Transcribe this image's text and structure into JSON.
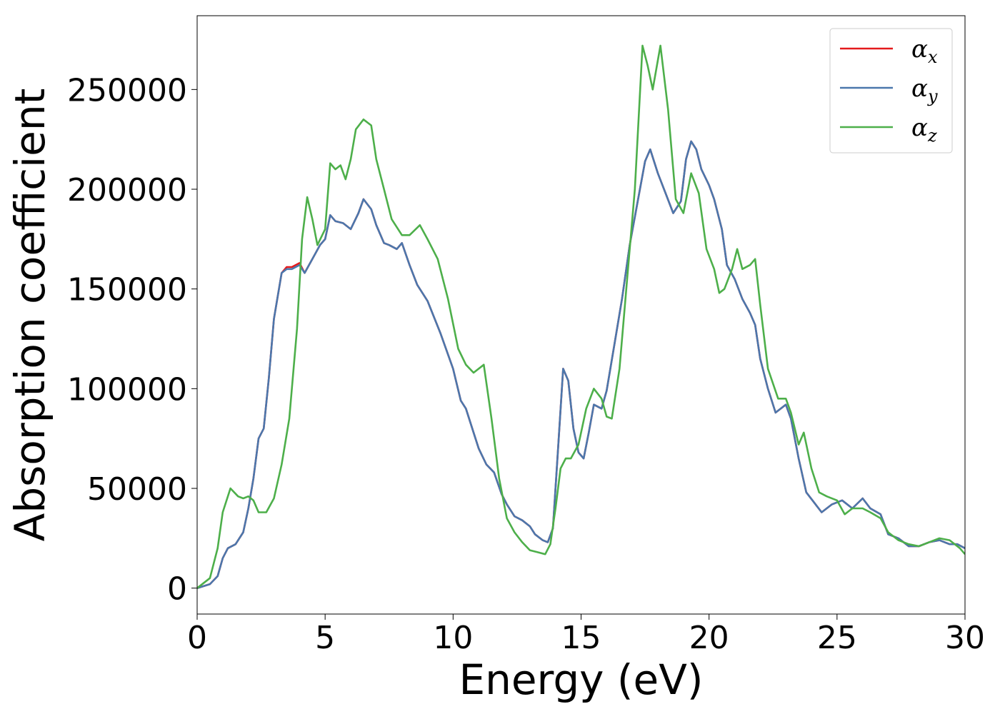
{
  "chart_data": {
    "type": "line",
    "title": "",
    "xlabel": "Energy (eV)",
    "ylabel": "Absorption coefficient",
    "xlim": [
      0,
      30
    ],
    "ylim": [
      -13000,
      287000
    ],
    "xticks": [
      "0",
      "5",
      "10",
      "15",
      "20",
      "25",
      "30"
    ],
    "yticks": [
      "0",
      "50000",
      "100000",
      "150000",
      "200000",
      "250000"
    ],
    "grid": false,
    "legend_position": "top-right",
    "series": [
      {
        "name": "α",
        "subscript": "x",
        "color": "#e41a1c",
        "x": [
          0,
          0.5,
          0.8,
          1.0,
          1.2,
          1.5,
          1.8,
          2.0,
          2.2,
          2.4,
          2.6,
          2.8,
          3.0,
          3.3,
          3.5,
          3.7,
          4.0,
          4.2,
          4.5,
          4.8,
          5.0,
          5.2,
          5.4,
          5.7,
          6.0,
          6.3,
          6.5,
          6.8,
          7.0,
          7.3,
          7.5,
          7.8,
          8.0,
          8.3,
          8.6,
          9.0,
          9.5,
          10.0,
          10.3,
          10.5,
          10.8,
          11.0,
          11.3,
          11.6,
          11.9,
          12.1,
          12.4,
          12.7,
          13.0,
          13.2,
          13.5,
          13.7,
          13.9,
          14.1,
          14.3,
          14.5,
          14.7,
          14.9,
          15.1,
          15.3,
          15.5,
          15.8,
          16.0,
          16.3,
          16.6,
          16.9,
          17.2,
          17.5,
          17.7,
          18.0,
          18.3,
          18.6,
          18.9,
          19.1,
          19.3,
          19.5,
          19.7,
          20.0,
          20.2,
          20.5,
          20.7,
          21.0,
          21.3,
          21.6,
          21.8,
          22.0,
          22.3,
          22.6,
          23.0,
          23.2,
          23.5,
          23.8,
          24.1,
          24.4,
          24.8,
          25.2,
          25.6,
          26.0,
          26.3,
          26.7,
          27.0,
          27.4,
          27.8,
          28.2,
          28.6,
          29.0,
          29.4,
          29.7,
          30.0
        ],
        "y": [
          0,
          2000,
          6000,
          15000,
          20000,
          22000,
          28000,
          40000,
          55000,
          75000,
          80000,
          105000,
          135000,
          158000,
          161000,
          161000,
          163000,
          158000,
          165000,
          172000,
          175000,
          187000,
          184000,
          183000,
          180000,
          188000,
          195000,
          190000,
          182000,
          173000,
          172000,
          170000,
          173000,
          162000,
          152000,
          144000,
          128000,
          110000,
          94000,
          90000,
          78000,
          70000,
          62000,
          58000,
          47000,
          42000,
          36000,
          34000,
          31000,
          27000,
          24000,
          23000,
          30000,
          70000,
          110000,
          104000,
          80000,
          68000,
          65000,
          78000,
          92000,
          90000,
          99000,
          122000,
          145000,
          172000,
          193000,
          214000,
          220000,
          208000,
          198000,
          188000,
          194000,
          215000,
          224000,
          220000,
          210000,
          202000,
          195000,
          180000,
          162000,
          155000,
          145000,
          138000,
          132000,
          115000,
          100000,
          88000,
          92000,
          85000,
          65000,
          48000,
          43000,
          38000,
          42000,
          44000,
          40000,
          45000,
          40000,
          37000,
          27000,
          25000,
          21000,
          21000,
          23000,
          24000,
          22000,
          22000,
          20000
        ]
      },
      {
        "name": "α",
        "subscript": "y",
        "color": "#4b77ac",
        "x": [
          0,
          0.5,
          0.8,
          1.0,
          1.2,
          1.5,
          1.8,
          2.0,
          2.2,
          2.4,
          2.6,
          2.8,
          3.0,
          3.3,
          3.5,
          3.7,
          4.0,
          4.2,
          4.5,
          4.8,
          5.0,
          5.2,
          5.4,
          5.7,
          6.0,
          6.3,
          6.5,
          6.8,
          7.0,
          7.3,
          7.5,
          7.8,
          8.0,
          8.3,
          8.6,
          9.0,
          9.5,
          10.0,
          10.3,
          10.5,
          10.8,
          11.0,
          11.3,
          11.6,
          11.9,
          12.1,
          12.4,
          12.7,
          13.0,
          13.2,
          13.5,
          13.7,
          13.9,
          14.1,
          14.3,
          14.5,
          14.7,
          14.9,
          15.1,
          15.3,
          15.5,
          15.8,
          16.0,
          16.3,
          16.6,
          16.9,
          17.2,
          17.5,
          17.7,
          18.0,
          18.3,
          18.6,
          18.9,
          19.1,
          19.3,
          19.5,
          19.7,
          20.0,
          20.2,
          20.5,
          20.7,
          21.0,
          21.3,
          21.6,
          21.8,
          22.0,
          22.3,
          22.6,
          23.0,
          23.2,
          23.5,
          23.8,
          24.1,
          24.4,
          24.8,
          25.2,
          25.6,
          26.0,
          26.3,
          26.7,
          27.0,
          27.4,
          27.8,
          28.2,
          28.6,
          29.0,
          29.4,
          29.7,
          30.0
        ],
        "y": [
          0,
          2000,
          6000,
          15000,
          20000,
          22000,
          28000,
          40000,
          55000,
          75000,
          80000,
          105000,
          135000,
          158000,
          160000,
          160000,
          162000,
          158000,
          165000,
          172000,
          175000,
          187000,
          184000,
          183000,
          180000,
          188000,
          195000,
          190000,
          182000,
          173000,
          172000,
          170000,
          173000,
          162000,
          152000,
          144000,
          128000,
          110000,
          94000,
          90000,
          78000,
          70000,
          62000,
          58000,
          47000,
          42000,
          36000,
          34000,
          31000,
          27000,
          24000,
          23000,
          30000,
          70000,
          110000,
          104000,
          80000,
          68000,
          65000,
          78000,
          92000,
          90000,
          99000,
          122000,
          145000,
          172000,
          193000,
          214000,
          220000,
          208000,
          198000,
          188000,
          194000,
          215000,
          224000,
          220000,
          210000,
          202000,
          195000,
          180000,
          162000,
          155000,
          145000,
          138000,
          132000,
          115000,
          100000,
          88000,
          92000,
          85000,
          65000,
          48000,
          43000,
          38000,
          42000,
          44000,
          40000,
          45000,
          40000,
          37000,
          27000,
          25000,
          21000,
          21000,
          23000,
          24000,
          22000,
          22000,
          20000
        ]
      },
      {
        "name": "α",
        "subscript": "z",
        "color": "#4daf4a",
        "x": [
          0,
          0.5,
          0.8,
          1.0,
          1.3,
          1.6,
          1.8,
          2.0,
          2.2,
          2.4,
          2.7,
          3.0,
          3.3,
          3.6,
          3.9,
          4.1,
          4.3,
          4.5,
          4.7,
          5.0,
          5.2,
          5.4,
          5.6,
          5.8,
          6.0,
          6.2,
          6.5,
          6.8,
          7.0,
          7.3,
          7.6,
          8.0,
          8.3,
          8.7,
          9.0,
          9.4,
          9.8,
          10.2,
          10.5,
          10.8,
          11.2,
          11.5,
          11.8,
          12.1,
          12.4,
          12.7,
          13.0,
          13.3,
          13.6,
          13.8,
          14.0,
          14.2,
          14.4,
          14.6,
          14.9,
          15.2,
          15.5,
          15.8,
          16.0,
          16.2,
          16.5,
          16.8,
          17.1,
          17.4,
          17.6,
          17.8,
          18.1,
          18.4,
          18.7,
          19.0,
          19.3,
          19.6,
          19.9,
          20.2,
          20.4,
          20.6,
          20.9,
          21.1,
          21.3,
          21.6,
          21.8,
          22.0,
          22.3,
          22.7,
          23.0,
          23.2,
          23.5,
          23.7,
          24.0,
          24.3,
          24.6,
          25.0,
          25.3,
          25.6,
          26.0,
          26.3,
          26.7,
          27.0,
          27.4,
          27.8,
          28.2,
          28.6,
          29.0,
          29.4,
          29.8,
          30.0
        ],
        "y": [
          0,
          5000,
          20000,
          38000,
          50000,
          46000,
          45000,
          46000,
          44000,
          38000,
          38000,
          45000,
          62000,
          85000,
          130000,
          175000,
          196000,
          185000,
          172000,
          180000,
          213000,
          210000,
          212000,
          205000,
          215000,
          230000,
          235000,
          232000,
          215000,
          200000,
          185000,
          177000,
          177000,
          182000,
          175000,
          165000,
          145000,
          120000,
          112000,
          108000,
          112000,
          85000,
          55000,
          35000,
          28000,
          23000,
          19000,
          18000,
          17000,
          22000,
          40000,
          60000,
          65000,
          65000,
          72000,
          90000,
          100000,
          95000,
          86000,
          85000,
          110000,
          155000,
          200000,
          272000,
          262000,
          250000,
          272000,
          240000,
          195000,
          188000,
          208000,
          198000,
          170000,
          160000,
          148000,
          150000,
          160000,
          170000,
          160000,
          162000,
          165000,
          142000,
          110000,
          95000,
          95000,
          88000,
          72000,
          78000,
          60000,
          48000,
          46000,
          44000,
          37000,
          40000,
          40000,
          38000,
          35000,
          28000,
          24000,
          22000,
          21000,
          23000,
          25000,
          24000,
          20000,
          17000
        ]
      }
    ]
  }
}
